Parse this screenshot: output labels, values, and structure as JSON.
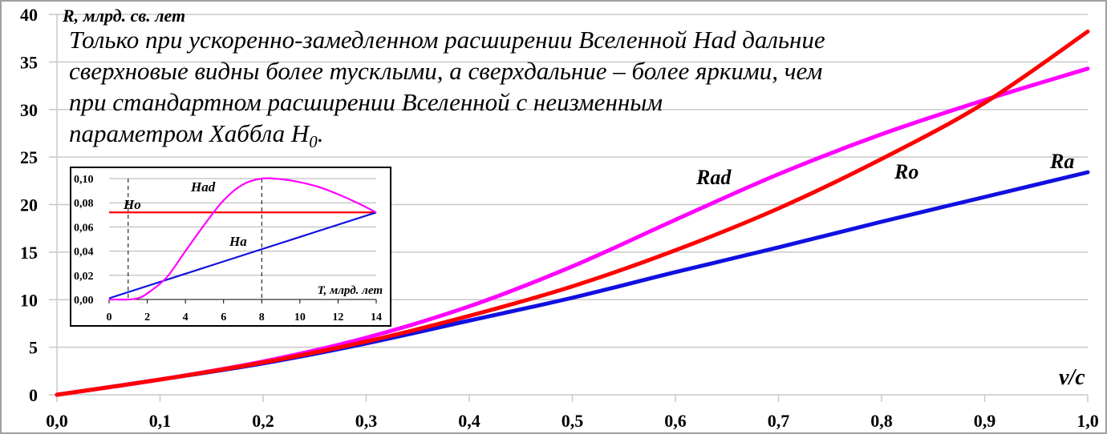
{
  "chart_data": [
    {
      "type": "line",
      "ylabel": "R, млрд. св. лет",
      "xlabel": "v/c",
      "xlim": [
        0,
        1
      ],
      "ylim": [
        0,
        40
      ],
      "x_ticks": [
        "0,0",
        "0,1",
        "0,2",
        "0,3",
        "0,4",
        "0,5",
        "0,6",
        "0,7",
        "0,8",
        "0,9",
        "1,0"
      ],
      "y_ticks": [
        "0",
        "5",
        "10",
        "15",
        "20",
        "25",
        "30",
        "35",
        "40"
      ],
      "grid": "horizontal",
      "x": [
        0,
        0.1,
        0.2,
        0.3,
        0.4,
        0.5,
        0.6,
        0.7,
        0.8,
        0.9,
        1.0
      ],
      "series": [
        {
          "name": "Ra",
          "color": "#1010e0",
          "values": [
            0,
            1.6,
            3.3,
            5.4,
            7.8,
            10.2,
            12.9,
            15.5,
            18.2,
            20.8,
            23.4
          ]
        },
        {
          "name": "Rad",
          "color": "#ff00ff",
          "values": [
            0,
            1.6,
            3.5,
            6.0,
            9.3,
            13.5,
            18.4,
            23.2,
            27.4,
            31.0,
            34.3
          ]
        },
        {
          "name": "Ro",
          "color": "#ff0000",
          "values": [
            0,
            1.6,
            3.4,
            5.6,
            8.3,
            11.4,
            15.2,
            19.6,
            24.8,
            30.7,
            38.2
          ]
        }
      ],
      "annotation_lines": [
        "Только при ускоренно-замедленном расширении Вселенной Had дальние",
        "сверхновые видны более тусклыми, а сверхдальние – более яркими, чем",
        "при стандартном расширении Вселенной с неизменным",
        "параметром Хаббла H"
      ],
      "annotation_subscript": "0",
      "annotation_end": "."
    },
    {
      "type": "line",
      "xlabel": "T, млрд. лет",
      "xlim": [
        0,
        14
      ],
      "ylim": [
        0,
        0.1
      ],
      "x_ticks": [
        "0",
        "2",
        "4",
        "6",
        "8",
        "10",
        "12",
        "14"
      ],
      "y_ticks": [
        "0,00",
        "0,02",
        "0,04",
        "0,06",
        "0,08",
        "0,10"
      ],
      "grid": "horizontal",
      "dashed_verticals": [
        1,
        8
      ],
      "series": [
        {
          "name": "Ho",
          "color": "#ff0000",
          "x": [
            0,
            14
          ],
          "values": [
            0.072,
            0.072
          ]
        },
        {
          "name": "Ha",
          "color": "#1010e0",
          "x": [
            0,
            14
          ],
          "values": [
            0.001,
            0.072
          ]
        },
        {
          "name": "Had",
          "color": "#ff00ff",
          "x": [
            0,
            1,
            1.5,
            2,
            3,
            4,
            5,
            6,
            7,
            8,
            9,
            10,
            11,
            12,
            13,
            14
          ],
          "values": [
            0,
            0,
            0.001,
            0.005,
            0.018,
            0.04,
            0.062,
            0.082,
            0.095,
            0.1,
            0.0995,
            0.097,
            0.093,
            0.087,
            0.08,
            0.072
          ]
        }
      ]
    }
  ]
}
